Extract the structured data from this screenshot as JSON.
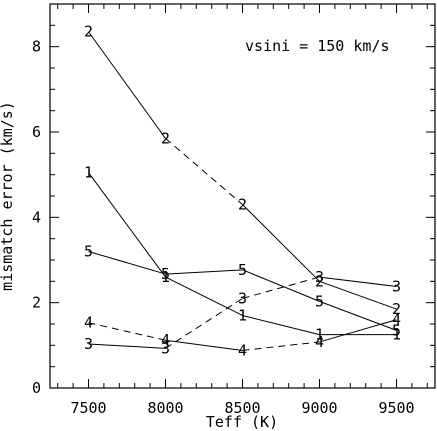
{
  "chart_data": {
    "type": "line",
    "title": "",
    "annotation": "vsini = 150 km/s",
    "xlabel": "Teff (K)",
    "ylabel": "mismatch error (km/s)",
    "x": [
      7500,
      8000,
      8500,
      9000,
      9500
    ],
    "xticks": [
      "7500",
      "8000",
      "8500",
      "9000",
      "9500"
    ],
    "yticks": [
      "0",
      "2",
      "4",
      "6",
      "8"
    ],
    "xlim": [
      7250,
      9750
    ],
    "ylim": [
      0,
      9.0
    ],
    "grid": false,
    "legend": "none",
    "series": [
      {
        "marker": "1",
        "values": [
          5.05,
          2.6,
          1.7,
          1.25,
          1.25
        ],
        "dashed": [
          false,
          false,
          false,
          false
        ]
      },
      {
        "marker": "2",
        "values": [
          8.35,
          5.85,
          4.3,
          2.5,
          1.85
        ],
        "dashed": [
          false,
          true,
          false,
          false
        ]
      },
      {
        "marker": "3",
        "values": [
          1.03,
          0.93,
          2.1,
          2.6,
          2.38
        ],
        "dashed": [
          false,
          true,
          true,
          false
        ]
      },
      {
        "marker": "4",
        "values": [
          1.53,
          1.12,
          0.88,
          1.08,
          1.6
        ],
        "dashed": [
          true,
          false,
          true,
          false
        ]
      },
      {
        "marker": "5",
        "values": [
          3.2,
          2.67,
          2.77,
          2.03,
          1.35
        ],
        "dashed": [
          false,
          false,
          false,
          false
        ]
      }
    ]
  }
}
